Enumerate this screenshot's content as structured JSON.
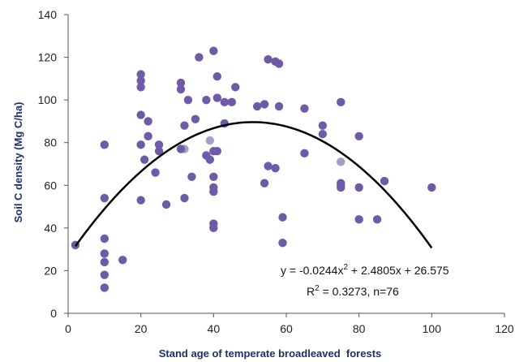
{
  "chart_data": {
    "type": "scatter",
    "xlabel": "Stand age of temperate broadleaved  forests",
    "ylabel": "Soil C density (Mg C/ha)",
    "xlim": [
      0,
      120
    ],
    "ylim": [
      0,
      140
    ],
    "xticks": [
      "0",
      "20",
      "40",
      "60",
      "80",
      "100",
      "120"
    ],
    "yticks": [
      "0",
      "20",
      "40",
      "60",
      "80",
      "100",
      "120",
      "140"
    ],
    "grid": false,
    "colors": {
      "points": "#6f5aa8",
      "points_light": "#a89cc8",
      "trend": "#000000",
      "axis": "#555555"
    },
    "points": [
      [
        2,
        32
      ],
      [
        10,
        79
      ],
      [
        10,
        54
      ],
      [
        10,
        35
      ],
      [
        10,
        28
      ],
      [
        10,
        24
      ],
      [
        10,
        18
      ],
      [
        10,
        12
      ],
      [
        15,
        25
      ],
      [
        20,
        112
      ],
      [
        20,
        109
      ],
      [
        20,
        106
      ],
      [
        20,
        93
      ],
      [
        20,
        79
      ],
      [
        20,
        53
      ],
      [
        21,
        72
      ],
      [
        22,
        90
      ],
      [
        22,
        83
      ],
      [
        24,
        66
      ],
      [
        25,
        79
      ],
      [
        25,
        76
      ],
      [
        27,
        51
      ],
      [
        31,
        108
      ],
      [
        31,
        105
      ],
      [
        32,
        88
      ],
      [
        32,
        77
      ],
      [
        32,
        54
      ],
      [
        33,
        100
      ],
      [
        34,
        64
      ],
      [
        35,
        91
      ],
      [
        36,
        120
      ],
      [
        38,
        100
      ],
      [
        38,
        74
      ],
      [
        39,
        81
      ],
      [
        39,
        72
      ],
      [
        40,
        64
      ],
      [
        40,
        59
      ],
      [
        40,
        57
      ],
      [
        40,
        42
      ],
      [
        40,
        40
      ],
      [
        40,
        123
      ],
      [
        41,
        111
      ],
      [
        41,
        101
      ],
      [
        41,
        76
      ],
      [
        43,
        99
      ],
      [
        43,
        89
      ],
      [
        45,
        99
      ],
      [
        46,
        106
      ],
      [
        52,
        97
      ],
      [
        54,
        98
      ],
      [
        54,
        61
      ],
      [
        55,
        119
      ],
      [
        55,
        69
      ],
      [
        57,
        68
      ],
      [
        57,
        118
      ],
      [
        58,
        117
      ],
      [
        58,
        97
      ],
      [
        59,
        45
      ],
      [
        59,
        33
      ],
      [
        65,
        96
      ],
      [
        65,
        75
      ],
      [
        70,
        88
      ],
      [
        70,
        84
      ],
      [
        75,
        99
      ],
      [
        75,
        71
      ],
      [
        75,
        60
      ],
      [
        75,
        59
      ],
      [
        80,
        83
      ],
      [
        80,
        59
      ],
      [
        80,
        44
      ],
      [
        85,
        44
      ],
      [
        87,
        62
      ],
      [
        100,
        59
      ],
      [
        40,
        76
      ],
      [
        31,
        77
      ],
      [
        75,
        61
      ]
    ],
    "light_points": [
      [
        32,
        77
      ],
      [
        75,
        71
      ],
      [
        39,
        81
      ]
    ],
    "trendline": {
      "a": -0.0244,
      "b": 2.4805,
      "c": 26.575,
      "x_start": 2,
      "x_end": 100
    },
    "annotations": {
      "equation_prefix": "y = -0.0244x",
      "equation_sup": "2",
      "equation_suffix": " + 2.4805x + 26.575",
      "r2_prefix": "R",
      "r2_sup": "2",
      "r2_suffix": " = 0.3273, n=76"
    }
  }
}
